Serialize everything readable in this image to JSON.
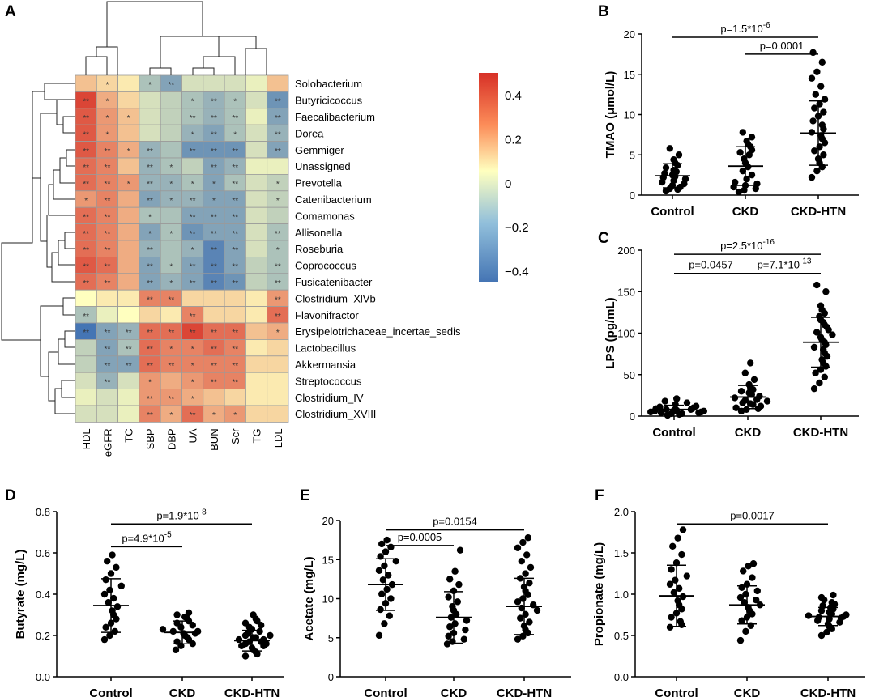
{
  "panels": {
    "A": "A",
    "B": "B",
    "C": "C",
    "D": "D",
    "E": "E",
    "F": "F"
  },
  "chart_data": [
    {
      "panel": "A",
      "type": "heatmap",
      "rows": [
        "Solobacterium",
        "Butyricicoccus",
        "Faecalibacterium",
        "Dorea",
        "Gemmiger",
        "Unassigned",
        "Prevotella",
        "Catenibacterium",
        "Comamonas",
        "Allisonella",
        "Roseburia",
        "Coprococcus",
        "Fusicatenibacter",
        "Clostridium_XlVb",
        "Flavonifractor",
        "Erysipelotrichaceae_incertae_sedis",
        "Lactobacillus",
        "Akkermansia",
        "Streptococcus",
        "Clostridium_IV",
        "Clostridium_XVIII"
      ],
      "columns": [
        "HDL",
        "eGFR",
        "TC",
        "SBP",
        "DBP",
        "UA",
        "BUN",
        "Scr",
        "TG",
        "LDL"
      ],
      "values": [
        [
          0.15,
          0.1,
          0.05,
          -0.2,
          -0.3,
          -0.1,
          -0.1,
          -0.1,
          -0.05,
          0.15
        ],
        [
          0.45,
          0.2,
          0.1,
          -0.1,
          -0.15,
          -0.2,
          -0.25,
          -0.2,
          -0.1,
          -0.35
        ],
        [
          0.4,
          0.25,
          0.15,
          -0.1,
          -0.15,
          -0.2,
          -0.25,
          -0.2,
          -0.05,
          -0.3
        ],
        [
          0.4,
          0.25,
          0.15,
          -0.1,
          -0.15,
          -0.25,
          -0.3,
          -0.2,
          -0.1,
          -0.25
        ],
        [
          0.4,
          0.3,
          0.2,
          -0.25,
          -0.2,
          -0.35,
          -0.35,
          -0.35,
          -0.1,
          -0.3
        ],
        [
          0.35,
          0.3,
          0.15,
          -0.25,
          -0.2,
          -0.15,
          -0.3,
          -0.25,
          -0.05,
          -0.05
        ],
        [
          0.35,
          0.3,
          0.25,
          -0.25,
          -0.25,
          -0.2,
          -0.3,
          -0.2,
          -0.1,
          -0.15
        ],
        [
          0.25,
          0.3,
          0.2,
          -0.3,
          -0.25,
          -0.25,
          -0.3,
          -0.3,
          -0.1,
          -0.15
        ],
        [
          0.35,
          0.3,
          0.2,
          -0.2,
          -0.2,
          -0.3,
          -0.3,
          -0.3,
          -0.1,
          -0.15
        ],
        [
          0.35,
          0.3,
          0.2,
          -0.3,
          -0.2,
          -0.35,
          -0.3,
          -0.3,
          -0.1,
          -0.2
        ],
        [
          0.35,
          0.3,
          0.2,
          -0.25,
          -0.2,
          -0.25,
          -0.4,
          -0.3,
          -0.1,
          -0.2
        ],
        [
          0.4,
          0.35,
          0.2,
          -0.3,
          -0.2,
          -0.3,
          -0.4,
          -0.3,
          -0.15,
          -0.2
        ],
        [
          0.35,
          0.3,
          0.2,
          -0.3,
          -0.25,
          -0.3,
          -0.4,
          -0.35,
          -0.15,
          -0.2
        ],
        [
          0.0,
          0.05,
          0.05,
          0.3,
          0.3,
          0.1,
          0.1,
          0.1,
          0.05,
          0.25
        ],
        [
          -0.2,
          -0.05,
          0.0,
          0.1,
          0.05,
          0.3,
          0.1,
          0.1,
          0.05,
          0.35
        ],
        [
          -0.45,
          -0.3,
          -0.25,
          0.35,
          0.35,
          0.45,
          0.35,
          0.35,
          0.15,
          0.2
        ],
        [
          -0.15,
          -0.3,
          -0.2,
          0.35,
          0.3,
          0.3,
          0.35,
          0.3,
          0.05,
          0.1
        ],
        [
          -0.15,
          -0.3,
          -0.3,
          0.35,
          0.3,
          0.3,
          0.3,
          0.3,
          0.1,
          0.1
        ],
        [
          -0.1,
          -0.25,
          -0.1,
          0.25,
          0.2,
          0.25,
          0.3,
          0.3,
          0.05,
          0.05
        ],
        [
          -0.05,
          -0.1,
          -0.05,
          0.25,
          0.25,
          0.2,
          0.15,
          0.1,
          0.05,
          0.05
        ],
        [
          -0.1,
          -0.1,
          -0.05,
          0.3,
          0.2,
          0.35,
          0.2,
          0.25,
          0.1,
          0.1
        ]
      ],
      "significance": [
        [
          "",
          "*",
          "",
          "*",
          "**",
          "",
          "",
          "",
          "",
          ""
        ],
        [
          "**",
          "*",
          "",
          "",
          "",
          "*",
          "**",
          "*",
          "",
          "**"
        ],
        [
          "**",
          "*",
          "*",
          "",
          "",
          "**",
          "**",
          "**",
          "",
          "**"
        ],
        [
          "**",
          "*",
          "",
          "",
          "",
          "*",
          "**",
          "*",
          "",
          "**"
        ],
        [
          "**",
          "**",
          "*",
          "**",
          "",
          "**",
          "**",
          "**",
          "",
          "**"
        ],
        [
          "**",
          "**",
          "",
          "**",
          "*",
          "",
          "**",
          "**",
          "",
          ""
        ],
        [
          "**",
          "**",
          "*",
          "**",
          "*",
          "*",
          "*",
          "**",
          "",
          "*"
        ],
        [
          "*",
          "**",
          "",
          "**",
          "*",
          "**",
          "*",
          "**",
          "",
          "*"
        ],
        [
          "**",
          "**",
          "",
          "*",
          "",
          "**",
          "**",
          "**",
          "",
          ""
        ],
        [
          "**",
          "**",
          "",
          "*",
          "*",
          "**",
          "**",
          "**",
          "",
          "**"
        ],
        [
          "**",
          "**",
          "",
          "**",
          "",
          "*",
          "**",
          "**",
          "",
          "*"
        ],
        [
          "**",
          "**",
          "",
          "**",
          "*",
          "**",
          "**",
          "**",
          "",
          "**"
        ],
        [
          "**",
          "**",
          "",
          "**",
          "*",
          "**",
          "**",
          "**",
          "",
          "**"
        ],
        [
          "",
          "",
          "",
          "**",
          "**",
          "",
          "",
          "",
          "",
          "**"
        ],
        [
          "**",
          "",
          "",
          "",
          "",
          "**",
          "",
          "",
          "",
          "**"
        ],
        [
          "**",
          "**",
          "**",
          "**",
          "**",
          "**",
          "**",
          "**",
          "",
          "*"
        ],
        [
          "",
          "**",
          "**",
          "**",
          "*",
          "*",
          "**",
          "**",
          "",
          ""
        ],
        [
          "",
          "**",
          "**",
          "**",
          "**",
          "*",
          "**",
          "**",
          "",
          ""
        ],
        [
          "",
          "**",
          "",
          "*",
          "",
          "*",
          "**",
          "**",
          "",
          ""
        ],
        [
          "",
          "",
          "",
          "**",
          "**",
          "*",
          "",
          "",
          "",
          ""
        ],
        [
          "",
          "",
          "",
          "**",
          "*",
          "**",
          "*",
          "*",
          "",
          ""
        ]
      ],
      "colorbar_ticks": [
        "0.4",
        "0.2",
        "0",
        "−0.2",
        "−0.4"
      ],
      "colorbar_range": [
        -0.45,
        0.5
      ],
      "colors": {
        "low": "#4575b4",
        "mid": "#ffffbf",
        "high": "#d73027"
      }
    },
    {
      "panel": "B",
      "type": "scatter",
      "ylabel": "TMAO (μmol/L)",
      "ylim": [
        0,
        20
      ],
      "yticks": [
        "0",
        "5",
        "10",
        "15",
        "20"
      ],
      "categories": [
        "Control",
        "CKD",
        "CKD-HTN"
      ],
      "means": [
        2.4,
        3.6,
        7.7
      ],
      "sd": [
        1.5,
        2.4,
        4.0
      ],
      "points": [
        [
          0.5,
          0.7,
          0.8,
          1.0,
          1.2,
          1.4,
          1.6,
          1.8,
          2.0,
          2.2,
          2.3,
          2.5,
          2.7,
          2.9,
          3.1,
          3.4,
          3.7,
          4.0,
          4.4,
          5.0,
          5.8
        ],
        [
          0.4,
          0.6,
          0.8,
          1.0,
          1.2,
          1.4,
          1.6,
          2.0,
          2.5,
          3.0,
          3.5,
          4.0,
          4.5,
          5.0,
          5.3,
          5.6,
          6.0,
          6.3,
          6.7,
          7.2,
          7.8
        ],
        [
          2.2,
          3.0,
          3.5,
          4.0,
          4.5,
          5.0,
          5.5,
          6.0,
          6.5,
          7.0,
          7.4,
          7.8,
          8.2,
          8.7,
          9.2,
          9.8,
          10.3,
          10.8,
          11.3,
          11.9,
          12.5,
          13.5,
          14.5,
          15.3,
          16.5,
          17.7
        ]
      ],
      "comparisons": [
        {
          "label": "p=1.5*10",
          "sup": "-6",
          "from": 0,
          "to": 2,
          "y": 19.6
        },
        {
          "label": "p=0.0001",
          "sup": "",
          "from": 1,
          "to": 2,
          "y": 17.5
        }
      ]
    },
    {
      "panel": "C",
      "type": "scatter",
      "ylabel": "LPS (pg/mL)",
      "ylim": [
        0,
        200
      ],
      "yticks": [
        "0",
        "50",
        "100",
        "150",
        "200"
      ],
      "categories": [
        "Control",
        "CKD",
        "CKD-HTN"
      ],
      "means": [
        8,
        23,
        89
      ],
      "sd": [
        5,
        14,
        30
      ],
      "points": [
        [
          1,
          2,
          3,
          3,
          4,
          4,
          5,
          5,
          6,
          6,
          7,
          7,
          8,
          8,
          9,
          10,
          11,
          12,
          14,
          16,
          18,
          21
        ],
        [
          6,
          8,
          9,
          10,
          12,
          14,
          15,
          16,
          18,
          19,
          20,
          22,
          24,
          26,
          28,
          30,
          32,
          35,
          38,
          44,
          52,
          64
        ],
        [
          33,
          40,
          47,
          52,
          56,
          60,
          64,
          68,
          72,
          76,
          80,
          83,
          86,
          89,
          92,
          95,
          98,
          101,
          104,
          107,
          110,
          113,
          116,
          120,
          124,
          128,
          133,
          150,
          158
        ]
      ],
      "comparisons": [
        {
          "label": "p=2.5*10",
          "sup": "-16",
          "from": 0,
          "to": 2,
          "y": 195
        },
        {
          "label": "p=0.0457",
          "sup": "",
          "from": 0,
          "to": 1,
          "y": 172
        },
        {
          "label": "p=7.1*10",
          "sup": "-13",
          "from": 1,
          "to": 2,
          "y": 172
        }
      ]
    },
    {
      "panel": "D",
      "type": "scatter",
      "ylabel": "Butyrate (mg/L)",
      "ylim": [
        0,
        0.8
      ],
      "yticks": [
        "0.0",
        "0.2",
        "0.4",
        "0.6",
        "0.8"
      ],
      "categories": [
        "Control",
        "CKD",
        "CKD-HTN"
      ],
      "means": [
        0.345,
        0.215,
        0.175
      ],
      "sd": [
        0.13,
        0.055,
        0.05
      ],
      "points": [
        [
          0.18,
          0.2,
          0.22,
          0.24,
          0.26,
          0.28,
          0.3,
          0.32,
          0.34,
          0.36,
          0.38,
          0.4,
          0.42,
          0.44,
          0.47,
          0.5,
          0.53,
          0.56,
          0.59
        ],
        [
          0.13,
          0.15,
          0.16,
          0.17,
          0.18,
          0.19,
          0.2,
          0.21,
          0.21,
          0.22,
          0.22,
          0.23,
          0.24,
          0.25,
          0.26,
          0.27,
          0.28,
          0.29,
          0.3,
          0.31
        ],
        [
          0.1,
          0.11,
          0.12,
          0.13,
          0.14,
          0.15,
          0.15,
          0.16,
          0.16,
          0.17,
          0.17,
          0.18,
          0.18,
          0.19,
          0.19,
          0.2,
          0.2,
          0.21,
          0.22,
          0.23,
          0.24,
          0.25,
          0.26,
          0.27,
          0.28,
          0.3
        ]
      ],
      "comparisons": [
        {
          "label": "p=1.9*10",
          "sup": "-8",
          "from": 0,
          "to": 2,
          "y": 0.74
        },
        {
          "label": "p=4.9*10",
          "sup": "-5",
          "from": 0,
          "to": 1,
          "y": 0.63
        }
      ]
    },
    {
      "panel": "E",
      "type": "scatter",
      "ylabel": "Acetate (mg/L)",
      "ylim": [
        0,
        20
      ],
      "yticks": [
        "0",
        "5",
        "10",
        "15",
        "20"
      ],
      "categories": [
        "Control",
        "CKD",
        "CKD-HTN"
      ],
      "means": [
        11.8,
        7.6,
        9.0
      ],
      "sd": [
        3.3,
        3.3,
        3.6
      ],
      "points": [
        [
          5.3,
          6.8,
          7.8,
          8.6,
          9.4,
          10.0,
          10.6,
          11.2,
          11.8,
          12.4,
          13.0,
          13.6,
          14.2,
          14.8,
          15.4,
          16.0,
          16.6,
          17.0,
          17.5
        ],
        [
          4.2,
          4.5,
          4.8,
          5.2,
          5.6,
          6.0,
          6.4,
          6.8,
          7.2,
          7.6,
          8.0,
          8.5,
          9.0,
          9.6,
          10.2,
          11.0,
          11.8,
          12.5,
          13.5,
          16.2
        ],
        [
          4.8,
          5.2,
          5.6,
          6.0,
          6.5,
          7.0,
          7.5,
          8.0,
          8.5,
          8.8,
          9.2,
          9.6,
          10.0,
          10.5,
          11.0,
          11.5,
          12.0,
          12.6,
          13.2,
          14.0,
          14.8,
          15.6,
          16.5,
          17.2,
          17.8
        ]
      ],
      "comparisons": [
        {
          "label": "p=0.0154",
          "sup": "",
          "from": 0,
          "to": 2,
          "y": 18.8
        },
        {
          "label": "p=0.0005",
          "sup": "",
          "from": 0,
          "to": 1,
          "y": 16.8
        }
      ]
    },
    {
      "panel": "F",
      "type": "scatter",
      "ylabel": "Propionate (mg/L)",
      "ylim": [
        0,
        2.0
      ],
      "yticks": [
        "0.0",
        "0.5",
        "1.0",
        "1.5",
        "2.0"
      ],
      "categories": [
        "Control",
        "CKD",
        "CKD-HTN"
      ],
      "means": [
        0.98,
        0.87,
        0.73
      ],
      "sd": [
        0.37,
        0.23,
        0.11
      ],
      "points": [
        [
          0.6,
          0.63,
          0.67,
          0.72,
          0.77,
          0.82,
          0.87,
          0.92,
          0.97,
          1.02,
          1.07,
          1.12,
          1.17,
          1.22,
          1.3,
          1.38,
          1.48,
          1.58,
          1.68,
          1.78
        ],
        [
          0.44,
          0.55,
          0.62,
          0.68,
          0.72,
          0.76,
          0.8,
          0.84,
          0.87,
          0.9,
          0.93,
          0.96,
          1.0,
          1.04,
          1.08,
          1.12,
          1.2,
          1.28,
          1.34,
          1.37
        ],
        [
          0.5,
          0.54,
          0.58,
          0.61,
          0.64,
          0.66,
          0.68,
          0.7,
          0.71,
          0.72,
          0.73,
          0.74,
          0.75,
          0.76,
          0.78,
          0.8,
          0.82,
          0.84,
          0.86,
          0.88,
          0.9,
          0.93,
          0.96,
          0.99
        ]
      ],
      "comparisons": [
        {
          "label": "p=0.0017",
          "sup": "",
          "from": 0,
          "to": 2,
          "y": 1.85
        }
      ]
    }
  ]
}
